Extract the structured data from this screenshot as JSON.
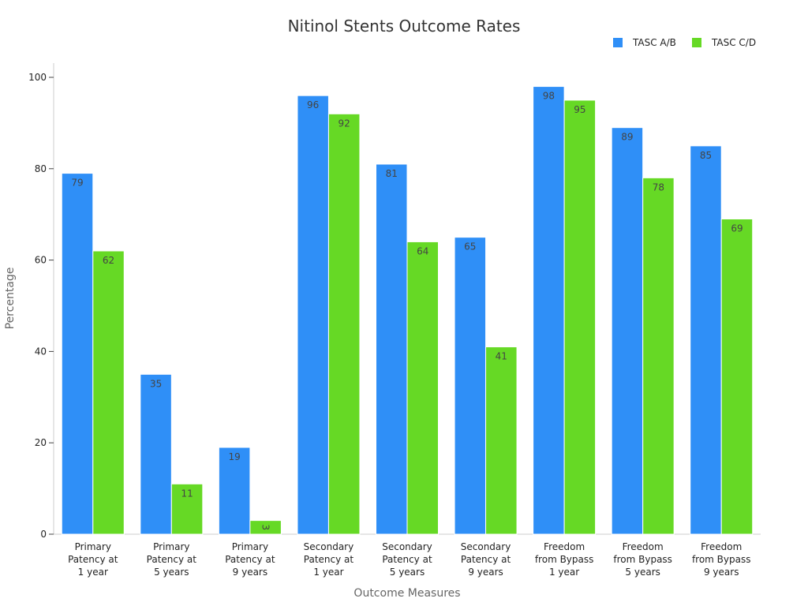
{
  "chart_data": {
    "type": "bar",
    "title": "Nitinol Stents Outcome Rates",
    "xlabel": "Outcome Measures",
    "ylabel": "Percentage",
    "ylim": [
      0,
      100
    ],
    "yticks": [
      0,
      20,
      40,
      60,
      80,
      100
    ],
    "grid": false,
    "legend_position": "top-right",
    "categories": [
      [
        "Primary",
        "Patency at",
        "1 year"
      ],
      [
        "Primary",
        "Patency at",
        "5 years"
      ],
      [
        "Primary",
        "Patency at",
        "9 years"
      ],
      [
        "Secondary",
        "Patency at",
        "1 year"
      ],
      [
        "Secondary",
        "Patency at",
        "5 years"
      ],
      [
        "Secondary",
        "Patency at",
        "9 years"
      ],
      [
        "Freedom",
        "from Bypass",
        "1 year"
      ],
      [
        "Freedom",
        "from Bypass",
        "5 years"
      ],
      [
        "Freedom",
        "from Bypass",
        "9 years"
      ]
    ],
    "series": [
      {
        "name": "TASC A/B",
        "color": "#2f8ff7",
        "values": [
          79,
          35,
          19,
          96,
          81,
          65,
          98,
          89,
          85
        ]
      },
      {
        "name": "TASC C/D",
        "color": "#66d925",
        "values": [
          62,
          11,
          3,
          92,
          64,
          41,
          95,
          78,
          69
        ]
      }
    ]
  }
}
